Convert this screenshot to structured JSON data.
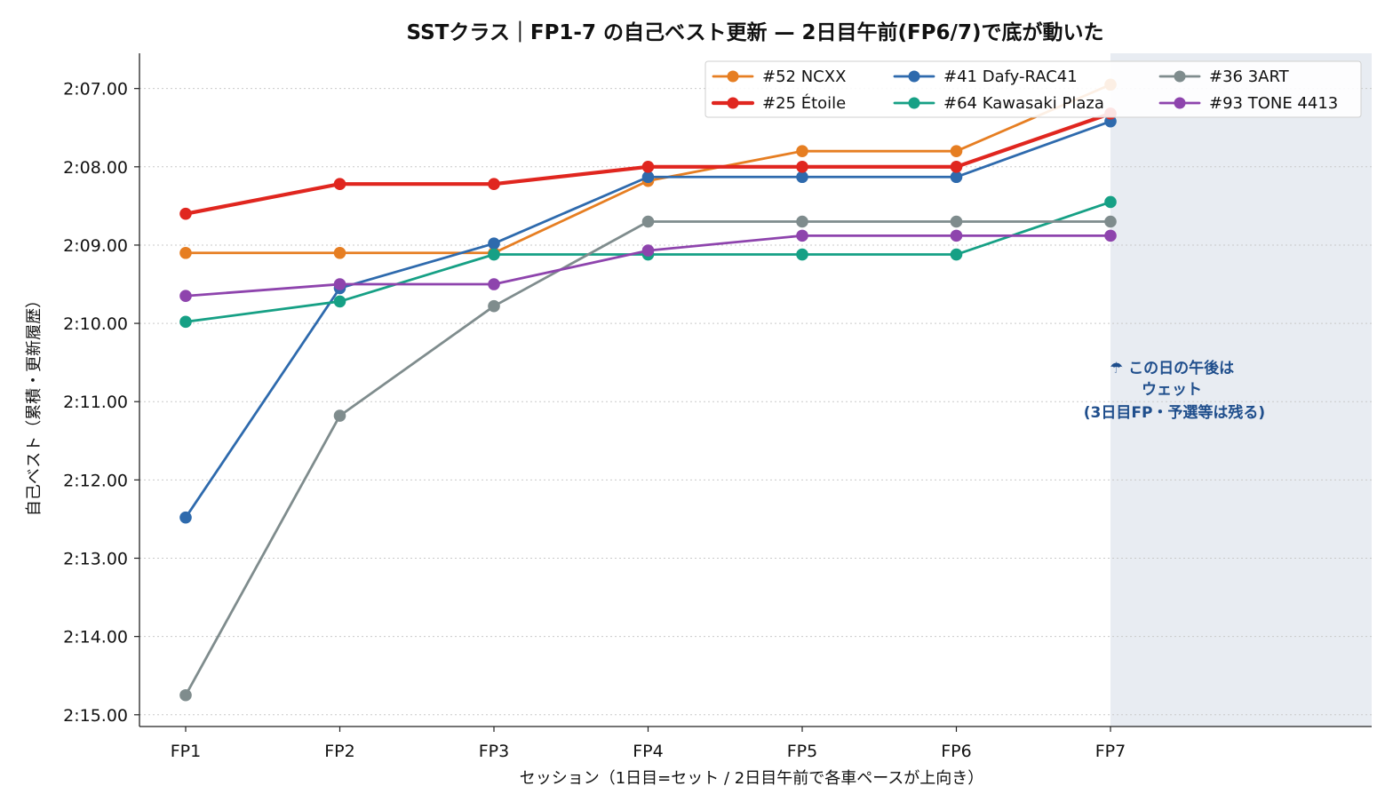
{
  "chart_data": {
    "type": "line",
    "title": "SSTクラス｜FP1-7 の自己ベスト更新 — 2日目午前(FP6/7)で底が動いた",
    "xlabel": "セッション（1日目=セット / 2日目午前で各車ペースが上向き）",
    "ylabel": "自己ベスト（累積・更新履歴）",
    "categories": [
      "FP1",
      "FP2",
      "FP3",
      "FP4",
      "FP5",
      "FP6",
      "FP7"
    ],
    "y_axis": {
      "inverted": true,
      "ylim_seconds": [
        135.15,
        126.55
      ],
      "ticks": [
        {
          "value": 127,
          "label": "2:07.00"
        },
        {
          "value": 128,
          "label": "2:08.00"
        },
        {
          "value": 129,
          "label": "2:09.00"
        },
        {
          "value": 130,
          "label": "2:10.00"
        },
        {
          "value": 131,
          "label": "2:11.00"
        },
        {
          "value": 132,
          "label": "2:12.00"
        },
        {
          "value": 133,
          "label": "2:13.00"
        },
        {
          "value": 134,
          "label": "2:14.00"
        },
        {
          "value": 135,
          "label": "2:15.00"
        }
      ]
    },
    "grid": "horizontal dotted",
    "legend_placement": "top-right",
    "series": [
      {
        "name": "#52 NCXX",
        "color": "#e67e22",
        "emphasis": false,
        "values": [
          129.1,
          129.1,
          129.1,
          128.18,
          127.8,
          127.8,
          126.95
        ]
      },
      {
        "name": "#25 Étoile",
        "color": "#e0261f",
        "emphasis": true,
        "values": [
          128.6,
          128.22,
          128.22,
          128.0,
          128.0,
          128.0,
          127.32
        ]
      },
      {
        "name": "#41 Dafy-RAC41",
        "color": "#2e6aad",
        "emphasis": false,
        "values": [
          132.48,
          129.55,
          128.98,
          128.13,
          128.13,
          128.13,
          127.42
        ]
      },
      {
        "name": "#64 Kawasaki Plaza",
        "color": "#16a085",
        "emphasis": false,
        "values": [
          129.98,
          129.72,
          129.12,
          129.12,
          129.12,
          129.12,
          128.45
        ]
      },
      {
        "name": "#36 3ART",
        "color": "#7f8c8d",
        "emphasis": false,
        "values": [
          134.75,
          131.18,
          129.78,
          128.7,
          128.7,
          128.7,
          128.7
        ]
      },
      {
        "name": "#93 TONE 4413",
        "color": "#8e44ad",
        "emphasis": false,
        "values": [
          129.65,
          129.5,
          129.5,
          129.07,
          128.88,
          128.88,
          128.88
        ]
      }
    ],
    "shaded_region": {
      "from_category": "FP7",
      "to": "end",
      "color": "#e8ecf2"
    },
    "annotation": {
      "lines": [
        "☂ この日の午後は",
        "ウェット",
        "(3日目FP・予選等は残る)"
      ],
      "color": "#1f4e8c"
    }
  }
}
